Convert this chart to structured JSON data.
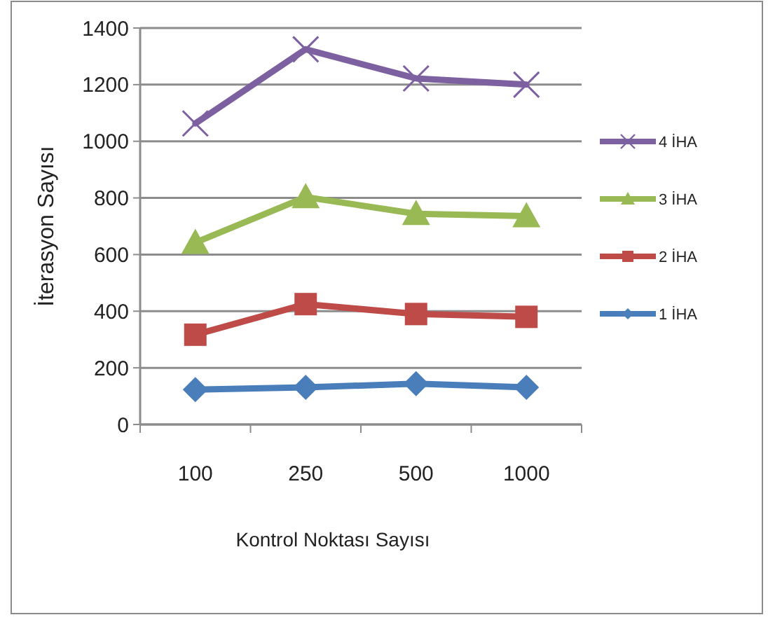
{
  "chart_data": {
    "type": "line",
    "xlabel": "Kontrol Noktası Sayısı",
    "ylabel": "İterasyon Sayısı",
    "categories": [
      "100",
      "250",
      "500",
      "1000"
    ],
    "series": [
      {
        "name": "1 İHA",
        "color": "#4a7ebb",
        "marker": "diamond",
        "values": [
          123,
          131,
          144,
          131
        ]
      },
      {
        "name": "2 İHA",
        "color": "#be4b48",
        "marker": "square",
        "values": [
          317,
          425,
          390,
          380
        ]
      },
      {
        "name": "3 İHA",
        "color": "#98b954",
        "marker": "triangle",
        "values": [
          642,
          803,
          744,
          736
        ]
      },
      {
        "name": "4 İHA",
        "color": "#7d60a0",
        "marker": "cross",
        "values": [
          1063,
          1325,
          1222,
          1200
        ]
      }
    ],
    "ylim": [
      0,
      1400
    ],
    "yticks": [
      0,
      200,
      400,
      600,
      800,
      1000,
      1200,
      1400
    ],
    "grid": "y",
    "legend": "right"
  }
}
